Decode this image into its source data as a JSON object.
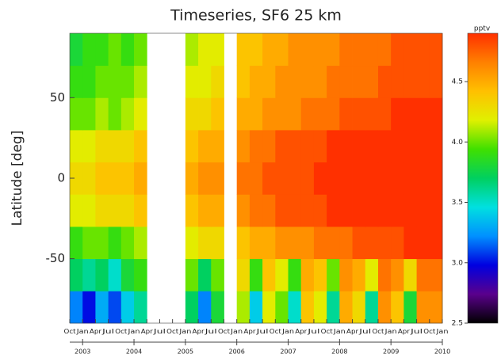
{
  "chart_data": {
    "type": "heatmap",
    "title": "Timeseries, SF6 25 km",
    "ylabel": "Latitude [deg]",
    "colorbar_label": "pptv",
    "x": [
      2002.75,
      2003.0,
      2003.25,
      2003.5,
      2003.75,
      2004.0,
      2004.25,
      2004.5,
      2004.75,
      2005.0,
      2005.25,
      2005.5,
      2005.75,
      2006.0,
      2006.25,
      2006.5,
      2006.75,
      2007.0,
      2007.25,
      2007.5,
      2007.75,
      2008.0,
      2008.25,
      2008.5,
      2008.75,
      2009.0,
      2009.25,
      2009.5,
      2009.75
    ],
    "y": [
      -80,
      -60,
      -40,
      -20,
      0,
      20,
      40,
      60,
      80
    ],
    "z": [
      [
        3.2,
        3.0,
        3.3,
        3.1,
        3.4,
        3.6,
        null,
        null,
        null,
        3.7,
        3.2,
        3.8,
        null,
        4.1,
        3.4,
        4.2,
        4.0,
        3.5,
        4.4,
        4.2,
        3.6,
        4.5,
        4.3,
        3.6,
        4.6,
        4.4,
        3.8,
        4.6,
        4.6
      ],
      [
        3.7,
        3.6,
        3.7,
        3.5,
        3.8,
        3.9,
        null,
        null,
        null,
        4.0,
        3.7,
        4.0,
        null,
        4.3,
        3.9,
        4.4,
        4.2,
        3.9,
        4.5,
        4.4,
        4.0,
        4.6,
        4.5,
        4.2,
        4.7,
        4.6,
        4.3,
        4.7,
        4.7
      ],
      [
        3.9,
        4.0,
        4.0,
        3.9,
        4.0,
        4.1,
        null,
        null,
        null,
        4.2,
        4.3,
        4.3,
        null,
        4.4,
        4.5,
        4.5,
        4.6,
        4.6,
        4.6,
        4.7,
        4.7,
        4.7,
        4.8,
        4.8,
        4.8,
        4.8,
        4.9,
        4.9,
        4.9
      ],
      [
        4.2,
        4.2,
        4.3,
        4.3,
        4.3,
        4.4,
        null,
        null,
        null,
        4.4,
        4.5,
        4.5,
        null,
        4.6,
        4.7,
        4.7,
        4.8,
        4.8,
        4.8,
        4.8,
        4.9,
        4.9,
        4.9,
        4.9,
        4.9,
        4.9,
        4.9,
        4.9,
        4.9
      ],
      [
        4.3,
        4.3,
        4.4,
        4.4,
        4.4,
        4.5,
        null,
        null,
        null,
        4.5,
        4.6,
        4.6,
        null,
        4.7,
        4.7,
        4.8,
        4.8,
        4.8,
        4.8,
        4.9,
        4.9,
        4.9,
        4.9,
        4.9,
        4.9,
        4.9,
        4.9,
        4.9,
        4.9
      ],
      [
        4.2,
        4.2,
        4.3,
        4.3,
        4.3,
        4.4,
        null,
        null,
        null,
        4.4,
        4.5,
        4.5,
        null,
        4.6,
        4.7,
        4.7,
        4.8,
        4.8,
        4.8,
        4.8,
        4.9,
        4.9,
        4.9,
        4.9,
        4.9,
        4.9,
        4.9,
        4.9,
        4.9
      ],
      [
        4.0,
        4.0,
        4.1,
        4.0,
        4.1,
        4.2,
        null,
        null,
        null,
        4.3,
        4.3,
        4.4,
        null,
        4.5,
        4.5,
        4.6,
        4.6,
        4.6,
        4.7,
        4.7,
        4.7,
        4.8,
        4.8,
        4.8,
        4.8,
        4.9,
        4.9,
        4.9,
        4.9
      ],
      [
        3.9,
        3.9,
        4.0,
        4.0,
        4.0,
        4.1,
        null,
        null,
        null,
        4.2,
        4.2,
        4.3,
        null,
        4.4,
        4.5,
        4.5,
        4.6,
        4.6,
        4.6,
        4.6,
        4.7,
        4.7,
        4.7,
        4.7,
        4.8,
        4.8,
        4.8,
        4.8,
        4.8
      ],
      [
        3.8,
        3.9,
        3.9,
        4.0,
        3.9,
        4.0,
        null,
        null,
        null,
        4.1,
        4.2,
        4.2,
        null,
        4.4,
        4.4,
        4.5,
        4.5,
        4.6,
        4.6,
        4.6,
        4.6,
        4.7,
        4.7,
        4.7,
        4.7,
        4.8,
        4.8,
        4.8,
        4.8
      ]
    ],
    "cell_width": 0.25,
    "cell_height": 20,
    "xlim": [
      2002.75,
      2010.0
    ],
    "ylim": [
      -90,
      90
    ],
    "yticks": [
      -50,
      0,
      50
    ],
    "xticks": [
      {
        "value": 2002.75,
        "label": "Oct"
      },
      {
        "value": 2003.0,
        "label": "Jan"
      },
      {
        "value": 2003.25,
        "label": "Apr"
      },
      {
        "value": 2003.5,
        "label": "Jul"
      },
      {
        "value": 2003.75,
        "label": "Oct"
      },
      {
        "value": 2004.0,
        "label": "Jan"
      },
      {
        "value": 2004.25,
        "label": "Apr"
      },
      {
        "value": 2004.5,
        "label": "Jul"
      },
      {
        "value": 2004.75,
        "label": "Oct"
      },
      {
        "value": 2005.0,
        "label": "Jan"
      },
      {
        "value": 2005.25,
        "label": "Apr"
      },
      {
        "value": 2005.5,
        "label": "Jul"
      },
      {
        "value": 2005.75,
        "label": "Oct"
      },
      {
        "value": 2006.0,
        "label": "Jan"
      },
      {
        "value": 2006.25,
        "label": "Apr"
      },
      {
        "value": 2006.5,
        "label": "Jul"
      },
      {
        "value": 2006.75,
        "label": "Oct"
      },
      {
        "value": 2007.0,
        "label": "Jan"
      },
      {
        "value": 2007.25,
        "label": "Apr"
      },
      {
        "value": 2007.5,
        "label": "Jul"
      },
      {
        "value": 2007.75,
        "label": "Oct"
      },
      {
        "value": 2008.0,
        "label": "Jan"
      },
      {
        "value": 2008.25,
        "label": "Apr"
      },
      {
        "value": 2008.5,
        "label": "Jul"
      },
      {
        "value": 2008.75,
        "label": "Oct"
      },
      {
        "value": 2009.0,
        "label": "Jan"
      },
      {
        "value": 2009.25,
        "label": "Apr"
      },
      {
        "value": 2009.5,
        "label": "Jul"
      },
      {
        "value": 2009.75,
        "label": "Oct"
      },
      {
        "value": 2010.0,
        "label": "Jan"
      }
    ],
    "year_ticks": [
      2003,
      2004,
      2005,
      2006,
      2007,
      2008,
      2009,
      2010
    ],
    "zlim": [
      2.5,
      4.9
    ],
    "zticks": [
      2.5,
      {
        "value": 3.0,
        "label": "3.0"
      },
      3.5,
      {
        "value": 4.0,
        "label": "4.0"
      },
      4.5
    ],
    "colormap": [
      "#000000",
      "#5a008c",
      "#0000e0",
      "#0090ff",
      "#00e0e0",
      "#00d060",
      "#40e000",
      "#e0f000",
      "#ffc000",
      "#ff8000",
      "#ff3000"
    ]
  }
}
